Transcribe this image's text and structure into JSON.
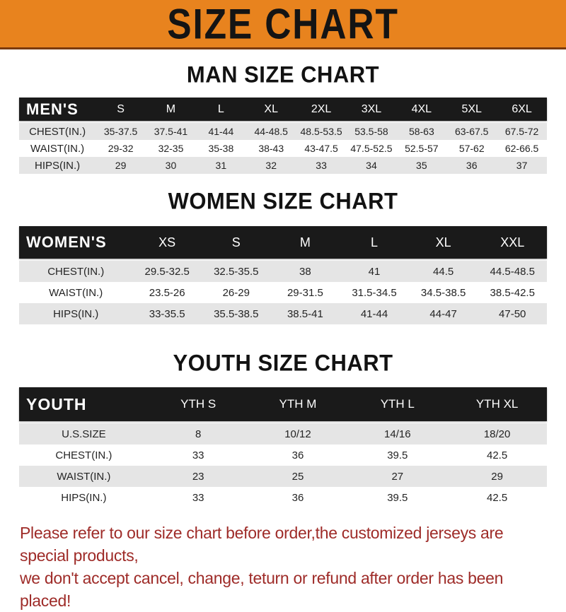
{
  "banner": {
    "title": "SIZE CHART",
    "bg_color": "#E8831E",
    "border_color": "#7B3A0E"
  },
  "colors": {
    "header_bar": "#1A1A1A",
    "header_text": "#FFFFFF",
    "row_alt": "#E5E5E5",
    "footer_text": "#9E2B28"
  },
  "sections": [
    {
      "heading": "MAN SIZE CHART",
      "table": {
        "name": "mens",
        "corner": "MEN'S",
        "columns": [
          "S",
          "M",
          "L",
          "XL",
          "2XL",
          "3XL",
          "4XL",
          "5XL",
          "6XL"
        ],
        "rows": [
          {
            "label": "CHEST(IN.)",
            "values": [
              "35-37.5",
              "37.5-41",
              "41-44",
              "44-48.5",
              "48.5-53.5",
              "53.5-58",
              "58-63",
              "63-67.5",
              "67.5-72"
            ]
          },
          {
            "label": "WAIST(IN.)",
            "values": [
              "29-32",
              "32-35",
              "35-38",
              "38-43",
              "43-47.5",
              "47.5-52.5",
              "52.5-57",
              "57-62",
              "62-66.5"
            ]
          },
          {
            "label": "HIPS(IN.)",
            "values": [
              "29",
              "30",
              "31",
              "32",
              "33",
              "34",
              "35",
              "36",
              "37"
            ]
          }
        ]
      }
    },
    {
      "heading": "WOMEN SIZE CHART",
      "table": {
        "name": "womens",
        "corner": "WOMEN'S",
        "columns": [
          "XS",
          "S",
          "M",
          "L",
          "XL",
          "XXL"
        ],
        "rows": [
          {
            "label": "CHEST(IN.)",
            "values": [
              "29.5-32.5",
              "32.5-35.5",
              "38",
              "41",
              "44.5",
              "44.5-48.5"
            ]
          },
          {
            "label": "WAIST(IN.)",
            "values": [
              "23.5-26",
              "26-29",
              "29-31.5",
              "31.5-34.5",
              "34.5-38.5",
              "38.5-42.5"
            ]
          },
          {
            "label": "HIPS(IN.)",
            "values": [
              "33-35.5",
              "35.5-38.5",
              "38.5-41",
              "41-44",
              "44-47",
              "47-50"
            ]
          }
        ]
      }
    },
    {
      "heading": "YOUTH SIZE CHART",
      "table": {
        "name": "youth",
        "corner": "YOUTH",
        "columns": [
          "YTH S",
          "YTH M",
          "YTH L",
          "YTH XL"
        ],
        "rows": [
          {
            "label": "U.S.SIZE",
            "values": [
              "8",
              "10/12",
              "14/16",
              "18/20"
            ]
          },
          {
            "label": "CHEST(IN.)",
            "values": [
              "33",
              "36",
              "39.5",
              "42.5"
            ]
          },
          {
            "label": "WAIST(IN.)",
            "values": [
              "23",
              "25",
              "27",
              "29"
            ]
          },
          {
            "label": "HIPS(IN.)",
            "values": [
              "33",
              "36",
              "39.5",
              "42.5"
            ]
          }
        ]
      }
    }
  ],
  "footer": {
    "lines": [
      "Please refer to our size chart before order,the customized jerseys are special products,",
      "we don't accept cancel, change, teturn or refund after order has been placed!"
    ]
  }
}
